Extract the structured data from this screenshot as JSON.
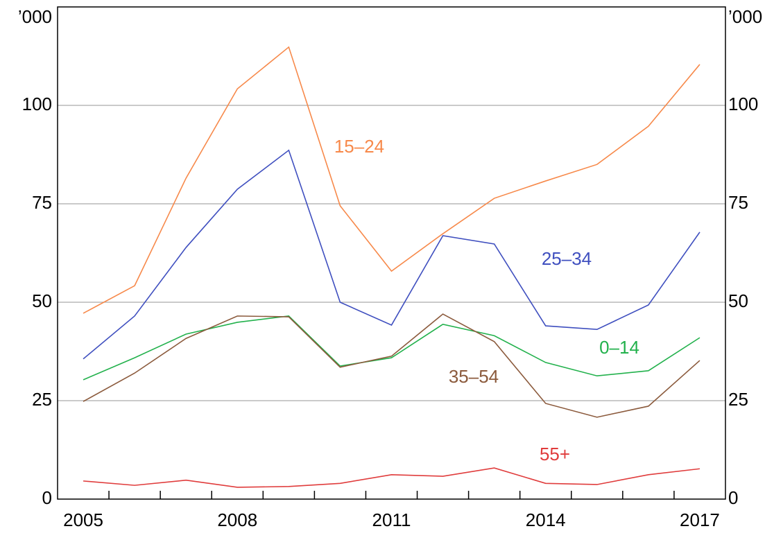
{
  "chart_data": {
    "type": "line",
    "y_unit": "’000",
    "y2_unit": "’000",
    "categories": [
      "2005",
      null,
      null,
      "2008",
      null,
      null,
      "2011",
      null,
      null,
      "2014",
      null,
      null,
      "2017"
    ],
    "ylim": [
      0,
      125
    ],
    "yticks": [
      0,
      25,
      50,
      75,
      100
    ],
    "y2lim": [
      0,
      125
    ],
    "y2ticks": [
      0,
      25,
      50,
      75,
      100
    ],
    "grid": true,
    "series": [
      {
        "name": "15–24",
        "color": "#f7894a",
        "values": [
          47.2,
          54.2,
          81.5,
          104.2,
          114.8,
          74.5,
          57.9,
          67.4,
          76.4,
          80.8,
          85,
          94.7,
          110.4
        ]
      },
      {
        "name": "25–34",
        "color": "#3f4fbf",
        "values": [
          35.6,
          46.5,
          63.9,
          78.7,
          88.6,
          50,
          44.2,
          66.9,
          64.8,
          44,
          43.1,
          49.3,
          67.8
        ]
      },
      {
        "name": "0–14",
        "color": "#22b14c",
        "values": [
          30.3,
          35.9,
          41.9,
          44.9,
          46.5,
          33.8,
          35.9,
          44.4,
          41.5,
          34.7,
          31.3,
          32.6,
          41
        ]
      },
      {
        "name": "35–54",
        "color": "#8b5a3c",
        "values": [
          24.8,
          32,
          40.8,
          46.5,
          46.3,
          33.5,
          36.3,
          47,
          40,
          24.3,
          20.8,
          23.6,
          35.2
        ]
      },
      {
        "name": "55+",
        "color": "#e03c3c",
        "values": [
          4.6,
          3.5,
          4.8,
          3,
          3.2,
          4,
          6.2,
          5.8,
          7.9,
          4,
          3.7,
          6.2,
          7.7
        ]
      }
    ]
  }
}
